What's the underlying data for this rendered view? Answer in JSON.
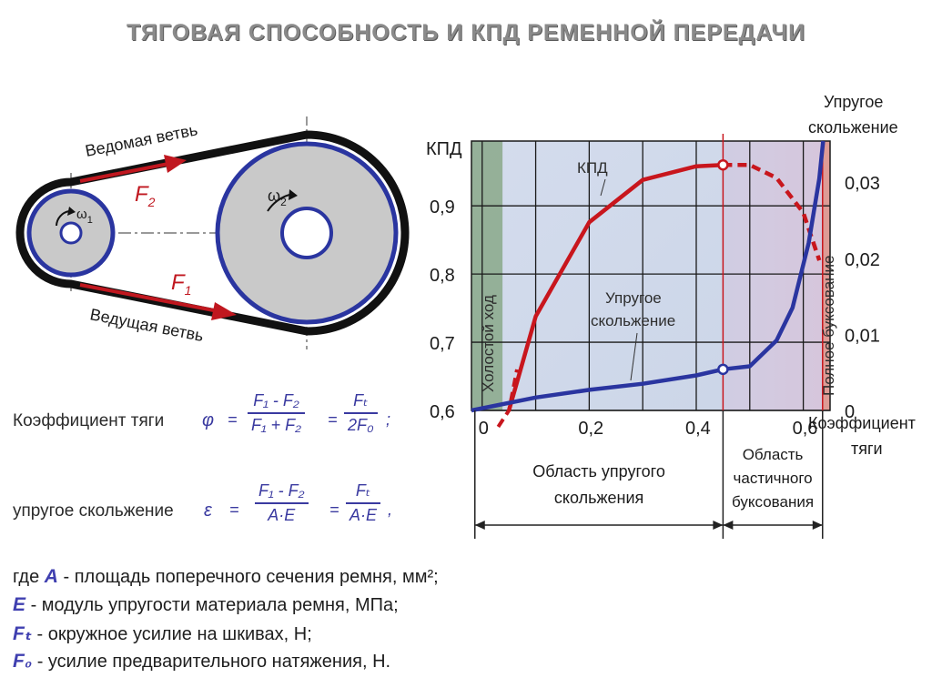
{
  "title": "ТЯГОВАЯ СПОСОБНОСТЬ И КПД РЕМЕННОЙ ПЕРЕДАЧИ",
  "drive": {
    "slack_branch": "Ведомая ветвь",
    "tight_branch": "Ведущая ветвь",
    "force_slack": "F",
    "force_slack_sub": "2",
    "force_tight": "F",
    "force_tight_sub": "1",
    "omega_small": "ω",
    "omega_small_sub": "1",
    "omega_large": "ω",
    "omega_large_sub": "2",
    "colors": {
      "belt": "#111111",
      "rim": "#2a35a0",
      "disk": "#c9c9c9",
      "arrow": "#c0171f"
    }
  },
  "chart_data": {
    "type": "line",
    "xlabel": "Коэффициент\nтяги",
    "xlabel_lines": [
      "Коэффициент",
      "тяги"
    ],
    "ylabel_left": "КПД",
    "ylabel_right_lines": [
      "Упругое",
      "скольжение"
    ],
    "x_ticks": [
      "0",
      "0,2",
      "0,4",
      "0,6"
    ],
    "x_tick_values": [
      0,
      0.2,
      0.4,
      0.6
    ],
    "y_left_ticks": [
      "0,6",
      "0,7",
      "0,8",
      "0,9"
    ],
    "y_left_tick_values": [
      0.6,
      0.7,
      0.8,
      0.9
    ],
    "y_right_ticks": [
      "0",
      "0,01",
      "0,02",
      "0,03"
    ],
    "y_right_tick_values": [
      0,
      0.01,
      0.02,
      0.03
    ],
    "xlim": [
      -0.02,
      0.65
    ],
    "ylim_left": [
      0.6,
      0.995
    ],
    "ylim_right": [
      0,
      0.0354
    ],
    "grid": true,
    "series": [
      {
        "name": "КПД",
        "axis": "left",
        "color": "#c8161d",
        "points": [
          [
            0.05,
            0.6
          ],
          [
            0.1,
            0.738
          ],
          [
            0.2,
            0.876
          ],
          [
            0.3,
            0.938
          ],
          [
            0.4,
            0.958
          ],
          [
            0.45,
            0.96
          ]
        ],
        "dashed_start": [
          [
            0.03,
            0.576
          ],
          [
            0.05,
            0.6
          ],
          [
            0.065,
            0.66
          ]
        ],
        "dashed_end": [
          [
            0.45,
            0.96
          ],
          [
            0.5,
            0.96
          ],
          [
            0.55,
            0.941
          ],
          [
            0.6,
            0.89
          ],
          [
            0.63,
            0.82
          ]
        ]
      },
      {
        "name": "Упругое\nскольжение",
        "label_lines": [
          "Упругое",
          "скольжение"
        ],
        "axis": "right",
        "color": "#2a35a0",
        "points": [
          [
            -0.02,
            0
          ],
          [
            0.1,
            0.0017
          ],
          [
            0.2,
            0.0027
          ],
          [
            0.3,
            0.0035
          ],
          [
            0.4,
            0.0046
          ],
          [
            0.45,
            0.0054
          ],
          [
            0.5,
            0.0058
          ],
          [
            0.55,
            0.0092
          ],
          [
            0.58,
            0.0135
          ],
          [
            0.61,
            0.022
          ],
          [
            0.63,
            0.0305
          ],
          [
            0.637,
            0.0354
          ]
        ]
      }
    ],
    "markers": [
      {
        "series": "КПД",
        "x": 0.45,
        "y": 0.96
      },
      {
        "series": "Упругое\nскольжение",
        "x": 0.45,
        "y": 0.0054
      }
    ],
    "regions": [
      {
        "label": "Холостой ход",
        "x_from": -0.02,
        "x_to": 0.038,
        "color": "#8aa88a"
      },
      {
        "label": "Полное буксование",
        "x_from": 0.636,
        "x_to": 0.65,
        "color": "#d9908a"
      }
    ],
    "zones": [
      {
        "label_lines": [
          "Область упругого",
          "скольжения"
        ],
        "x_from": 0,
        "x_to": 0.45
      },
      {
        "label_lines": [
          "Область",
          "частичного",
          "буксования"
        ],
        "x_from": 0.45,
        "x_to": 0.636
      }
    ],
    "colors": {
      "grid": "#1a1a1a",
      "bg_left": "#ccd6e8",
      "bg_right": "#d6c6dc",
      "kpd": "#c8161d",
      "slip": "#2a35a0",
      "vline": "#c8161d"
    }
  },
  "formulas": {
    "traction_label": "Коэффициент тяги",
    "traction_symbol": "φ",
    "traction_frac1_num": "F₁ - F₂",
    "traction_frac1_den": "F₁ + F₂",
    "traction_frac2_num": "Fₜ",
    "traction_frac2_den": "2F₀",
    "traction_tail": ";",
    "slip_label": "упругое скольжение",
    "slip_symbol": "ε",
    "slip_frac1_num": "F₁ - F₂",
    "slip_frac1_den": "A·E",
    "slip_frac2_num": "Fₜ",
    "slip_frac2_den": "A·E",
    "slip_tail": ","
  },
  "legend": [
    {
      "prefix": "где",
      "symbol": "A",
      "text": "- площадь поперечного сечения ремня, мм²;"
    },
    {
      "prefix": "",
      "symbol": "E",
      "text": "- модуль упругости материала ремня, МПа;"
    },
    {
      "prefix": "",
      "symbol": "Fₜ",
      "text": "- окружное усилие на шкивах, Н;"
    },
    {
      "prefix": "",
      "symbol": "F₀",
      "text": "- усилие предварительного натяжения, Н."
    }
  ]
}
